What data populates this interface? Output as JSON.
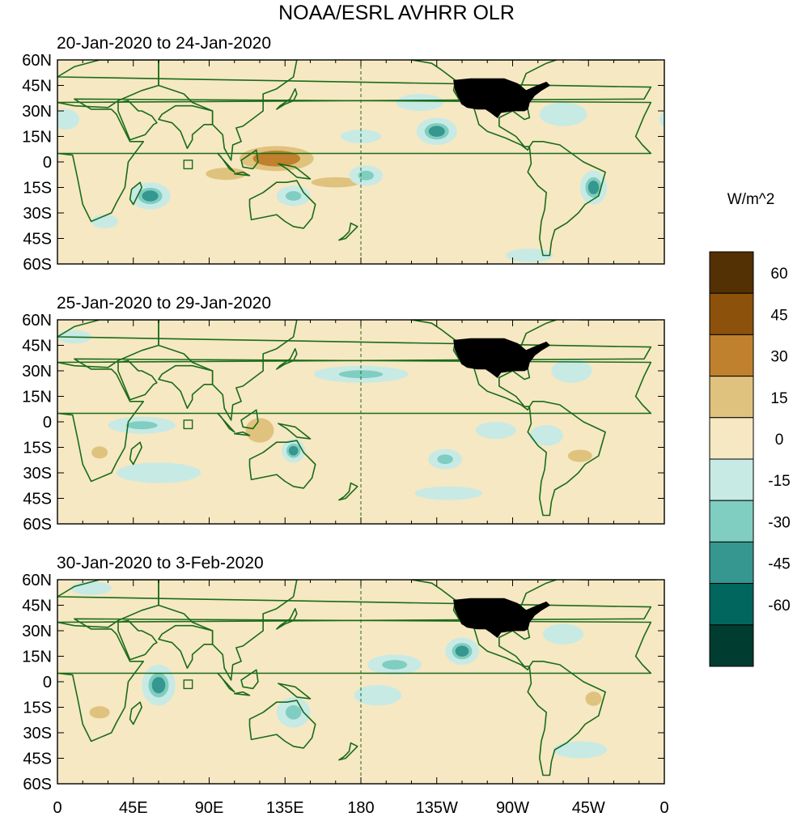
{
  "title": "NOAA/ESRL AVHRR OLR",
  "colorbar": {
    "units": "W/m^2",
    "labels": [
      "60",
      "45",
      "30",
      "15",
      "0",
      "-15",
      "-30",
      "-45",
      "-60"
    ],
    "colors": [
      "#543005",
      "#8c510a",
      "#bf812d",
      "#dfc27d",
      "#f6e8c3",
      "#c7eae5",
      "#80cdc1",
      "#35978f",
      "#01665e",
      "#003c30"
    ]
  },
  "lat_labels": [
    "60N",
    "45N",
    "30N",
    "15N",
    "0",
    "15S",
    "30S",
    "45S",
    "60S"
  ],
  "lon_labels": [
    "0",
    "45E",
    "90E",
    "135E",
    "180",
    "135W",
    "90W",
    "45W",
    "0"
  ],
  "coastline_color": "#1a6b1a",
  "panels": [
    {
      "period": "20-Jan-2020 to 24-Jan-2020"
    },
    {
      "period": "25-Jan-2020 to 29-Jan-2020"
    },
    {
      "period": "30-Jan-2020 to 3-Feb-2020"
    }
  ],
  "chart_data": {
    "type": "heatmap",
    "x_range": [
      0,
      360
    ],
    "y_range": [
      -60,
      60
    ],
    "features": [
      [
        {
          "lon": 130,
          "lat": 2,
          "v": 45,
          "rlon": 30,
          "rlat": 10
        },
        {
          "lon": 100,
          "lat": -7,
          "v": 38,
          "rlon": 20,
          "rlat": 6
        },
        {
          "lon": 165,
          "lat": -12,
          "v": 35,
          "rlon": 24,
          "rlat": 5
        },
        {
          "lon": 205,
          "lat": -25,
          "v": 28,
          "rlon": 14,
          "rlat": 5
        },
        {
          "lon": 25,
          "lat": -20,
          "v": 25,
          "rlon": 8,
          "rlat": 6
        },
        {
          "lon": 20,
          "lat": 0,
          "v": 20,
          "rlon": 6,
          "rlat": 5
        },
        {
          "lon": 130,
          "lat": 32,
          "v": 22,
          "rlon": 30,
          "rlat": 6
        },
        {
          "lon": 30,
          "lat": 45,
          "v": 18,
          "rlon": 20,
          "rlat": 6
        },
        {
          "lon": 280,
          "lat": 40,
          "v": 18,
          "rlon": 14,
          "rlat": 8
        },
        {
          "lon": 330,
          "lat": 40,
          "v": 15,
          "rlon": 20,
          "rlat": 7
        },
        {
          "lon": 55,
          "lat": -20,
          "v": -45,
          "rlon": 12,
          "rlat": 8
        },
        {
          "lon": 225,
          "lat": 18,
          "v": -45,
          "rlon": 12,
          "rlat": 8
        },
        {
          "lon": 183,
          "lat": -8,
          "v": -40,
          "rlon": 10,
          "rlat": 6
        },
        {
          "lon": 140,
          "lat": -20,
          "v": -30,
          "rlon": 10,
          "rlat": 6
        },
        {
          "lon": 180,
          "lat": 15,
          "v": -25,
          "rlon": 12,
          "rlat": 4
        },
        {
          "lon": 318,
          "lat": -15,
          "v": -45,
          "rlon": 8,
          "rlat": 10
        },
        {
          "lon": 300,
          "lat": 28,
          "v": -25,
          "rlon": 14,
          "rlat": 7
        },
        {
          "lon": 28,
          "lat": -35,
          "v": -22,
          "rlon": 8,
          "rlat": 4
        },
        {
          "lon": 280,
          "lat": -55,
          "v": -20,
          "rlon": 14,
          "rlat": 4
        },
        {
          "lon": 215,
          "lat": 35,
          "v": -18,
          "rlon": 14,
          "rlat": 5
        },
        {
          "lon": 5,
          "lat": 25,
          "v": -18,
          "rlon": 8,
          "rlat": 6
        }
      ],
      [
        {
          "lon": 120,
          "lat": -5,
          "v": 42,
          "rlon": 14,
          "rlat": 12
        },
        {
          "lon": 105,
          "lat": 5,
          "v": 25,
          "rlon": 10,
          "rlat": 6
        },
        {
          "lon": 25,
          "lat": -18,
          "v": 30,
          "rlon": 8,
          "rlat": 6
        },
        {
          "lon": 310,
          "lat": -20,
          "v": 32,
          "rlon": 12,
          "rlat": 6
        },
        {
          "lon": 270,
          "lat": 30,
          "v": 25,
          "rlon": 12,
          "rlat": 6
        },
        {
          "lon": 200,
          "lat": -14,
          "v": 22,
          "rlon": 16,
          "rlat": 4
        },
        {
          "lon": 150,
          "lat": 40,
          "v": 18,
          "rlon": 14,
          "rlat": 6
        },
        {
          "lon": 50,
          "lat": -2,
          "v": -42,
          "rlon": 20,
          "rlat": 5
        },
        {
          "lon": 140,
          "lat": -17,
          "v": -45,
          "rlon": 7,
          "rlat": 7
        },
        {
          "lon": 180,
          "lat": 28,
          "v": -30,
          "rlon": 28,
          "rlat": 5
        },
        {
          "lon": 230,
          "lat": -22,
          "v": -30,
          "rlon": 10,
          "rlat": 6
        },
        {
          "lon": 290,
          "lat": -8,
          "v": -25,
          "rlon": 10,
          "rlat": 6
        },
        {
          "lon": 260,
          "lat": -5,
          "v": -20,
          "rlon": 12,
          "rlat": 5
        },
        {
          "lon": 60,
          "lat": -30,
          "v": -20,
          "rlon": 25,
          "rlat": 6
        },
        {
          "lon": 305,
          "lat": 30,
          "v": -25,
          "rlon": 12,
          "rlat": 7
        },
        {
          "lon": 10,
          "lat": 50,
          "v": -15,
          "rlon": 10,
          "rlat": 4
        },
        {
          "lon": 340,
          "lat": 40,
          "v": 15,
          "rlon": 10,
          "rlat": 6
        },
        {
          "lon": 232,
          "lat": -42,
          "v": -18,
          "rlon": 20,
          "rlat": 4
        }
      ],
      [
        {
          "lon": 60,
          "lat": -2,
          "v": -50,
          "rlon": 10,
          "rlat": 12
        },
        {
          "lon": 140,
          "lat": -18,
          "v": -40,
          "rlon": 10,
          "rlat": 9
        },
        {
          "lon": 240,
          "lat": 18,
          "v": -45,
          "rlon": 10,
          "rlat": 8
        },
        {
          "lon": 200,
          "lat": 10,
          "v": -30,
          "rlon": 16,
          "rlat": 6
        },
        {
          "lon": 190,
          "lat": -8,
          "v": -25,
          "rlon": 14,
          "rlat": 6
        },
        {
          "lon": 25,
          "lat": -18,
          "v": 30,
          "rlon": 10,
          "rlat": 6
        },
        {
          "lon": 115,
          "lat": 18,
          "v": 28,
          "rlon": 14,
          "rlat": 6
        },
        {
          "lon": 150,
          "lat": 8,
          "v": 25,
          "rlon": 14,
          "rlat": 5
        },
        {
          "lon": 318,
          "lat": -10,
          "v": 30,
          "rlon": 8,
          "rlat": 7
        },
        {
          "lon": 10,
          "lat": 30,
          "v": 20,
          "rlon": 10,
          "rlat": 7
        },
        {
          "lon": 90,
          "lat": 30,
          "v": 18,
          "rlon": 18,
          "rlat": 5
        },
        {
          "lon": 350,
          "lat": 35,
          "v": 20,
          "rlon": 10,
          "rlat": 8
        },
        {
          "lon": 300,
          "lat": 28,
          "v": -22,
          "rlon": 12,
          "rlat": 6
        },
        {
          "lon": 20,
          "lat": 55,
          "v": -15,
          "rlon": 12,
          "rlat": 4
        },
        {
          "lon": 310,
          "lat": -40,
          "v": -15,
          "rlon": 16,
          "rlat": 5
        },
        {
          "lon": 150,
          "lat": -42,
          "v": 18,
          "rlon": 12,
          "rlat": 4
        }
      ]
    ]
  }
}
